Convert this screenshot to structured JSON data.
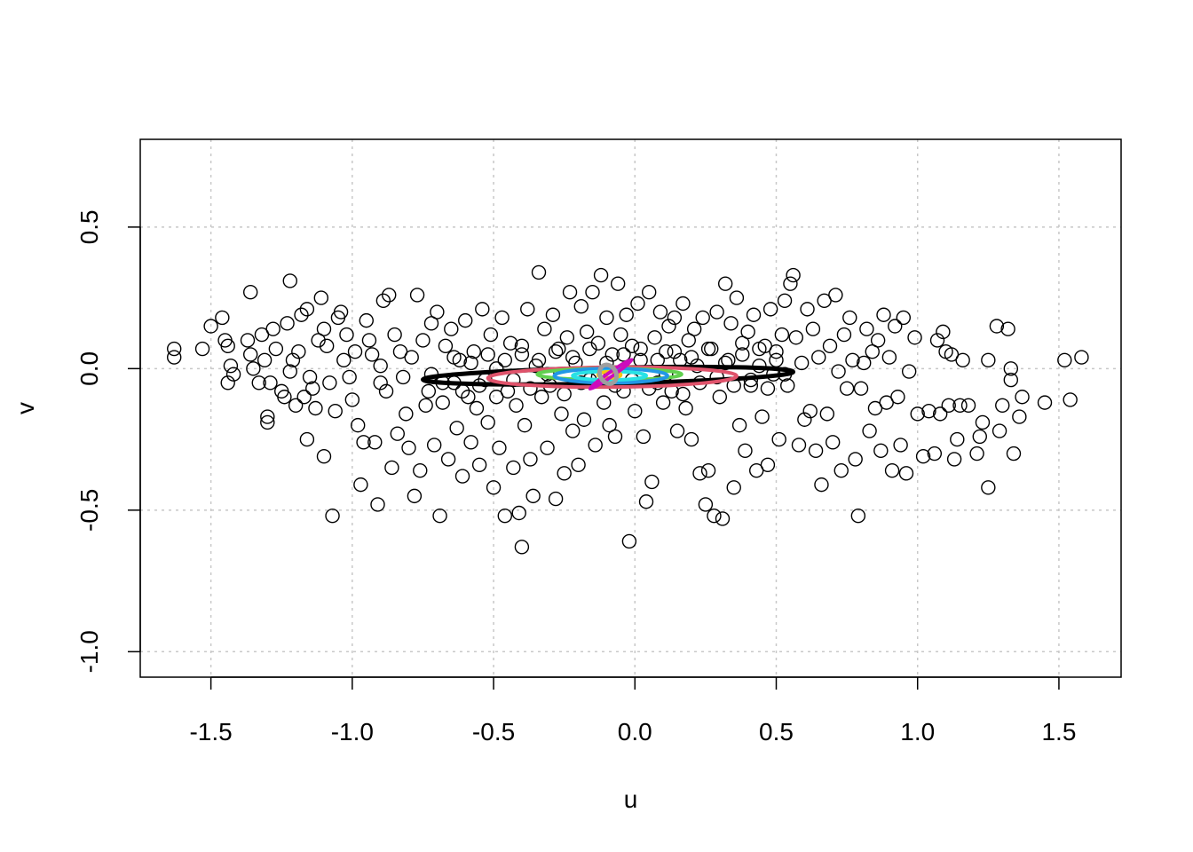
{
  "chart_data": {
    "type": "scatter",
    "title": "",
    "xlabel": "u",
    "ylabel": "v",
    "xlim": [
      -1.75,
      1.72
    ],
    "ylim": [
      -1.09,
      0.81
    ],
    "xticks": [
      -1.5,
      -1.0,
      -0.5,
      0.0,
      0.5,
      1.0,
      1.5
    ],
    "yticks": [
      -1.0,
      -0.5,
      0.0,
      0.5
    ],
    "xtick_labels": [
      "-1.5",
      "-1.0",
      "-0.5",
      "0.0",
      "0.5",
      "1.0",
      "1.5"
    ],
    "ytick_labels": [
      "-1.0",
      "-0.5",
      "0.0",
      "0.5"
    ],
    "grid": true,
    "legend": "none",
    "point_style": "open-circle",
    "points": [
      [
        -1.63,
        0.07
      ],
      [
        -1.63,
        0.04
      ],
      [
        -1.53,
        0.07
      ],
      [
        -1.5,
        0.15
      ],
      [
        -1.46,
        0.18
      ],
      [
        -1.45,
        0.1
      ],
      [
        -1.44,
        0.08
      ],
      [
        -1.44,
        -0.05
      ],
      [
        -1.43,
        0.01
      ],
      [
        -1.42,
        -0.02
      ],
      [
        -1.36,
        0.27
      ],
      [
        -1.37,
        0.1
      ],
      [
        -1.36,
        0.05
      ],
      [
        -1.35,
        0.0
      ],
      [
        -1.33,
        -0.05
      ],
      [
        -1.32,
        0.12
      ],
      [
        -1.31,
        0.03
      ],
      [
        -1.3,
        -0.17
      ],
      [
        -1.3,
        -0.19
      ],
      [
        -1.29,
        -0.05
      ],
      [
        -1.28,
        0.14
      ],
      [
        -1.27,
        0.07
      ],
      [
        -1.25,
        -0.08
      ],
      [
        -1.24,
        -0.1
      ],
      [
        -1.23,
        0.16
      ],
      [
        -1.22,
        0.31
      ],
      [
        -1.22,
        -0.01
      ],
      [
        -1.21,
        0.03
      ],
      [
        -1.2,
        -0.13
      ],
      [
        -1.19,
        0.06
      ],
      [
        -1.18,
        0.19
      ],
      [
        -1.17,
        -0.1
      ],
      [
        -1.16,
        -0.25
      ],
      [
        -1.16,
        0.21
      ],
      [
        -1.15,
        -0.03
      ],
      [
        -1.14,
        -0.07
      ],
      [
        -1.13,
        -0.14
      ],
      [
        -1.12,
        0.1
      ],
      [
        -1.11,
        0.25
      ],
      [
        -1.1,
        0.14
      ],
      [
        -1.1,
        -0.31
      ],
      [
        -1.09,
        0.08
      ],
      [
        -1.08,
        -0.05
      ],
      [
        -1.07,
        -0.52
      ],
      [
        -1.06,
        -0.15
      ],
      [
        -1.05,
        0.18
      ],
      [
        -1.04,
        0.2
      ],
      [
        -1.03,
        0.03
      ],
      [
        -1.02,
        0.12
      ],
      [
        -1.01,
        -0.03
      ],
      [
        -1.0,
        -0.11
      ],
      [
        -0.99,
        0.06
      ],
      [
        -0.98,
        -0.2
      ],
      [
        -0.97,
        -0.41
      ],
      [
        -0.96,
        -0.26
      ],
      [
        -0.95,
        0.17
      ],
      [
        -0.94,
        0.1
      ],
      [
        -0.93,
        0.05
      ],
      [
        -0.92,
        -0.26
      ],
      [
        -0.91,
        -0.48
      ],
      [
        -0.9,
        0.01
      ],
      [
        -0.9,
        -0.05
      ],
      [
        -0.89,
        0.24
      ],
      [
        -0.88,
        -0.08
      ],
      [
        -0.87,
        0.26
      ],
      [
        -0.86,
        -0.35
      ],
      [
        -0.85,
        0.12
      ],
      [
        -0.84,
        -0.23
      ],
      [
        -0.83,
        0.06
      ],
      [
        -0.82,
        -0.03
      ],
      [
        -0.81,
        -0.16
      ],
      [
        -0.8,
        -0.28
      ],
      [
        -0.79,
        0.04
      ],
      [
        -0.78,
        -0.45
      ],
      [
        -0.77,
        0.26
      ],
      [
        -0.76,
        -0.36
      ],
      [
        -0.75,
        0.1
      ],
      [
        -0.74,
        -0.13
      ],
      [
        -0.73,
        -0.08
      ],
      [
        -0.72,
        0.16
      ],
      [
        -0.71,
        -0.27
      ],
      [
        -0.7,
        0.2
      ],
      [
        -0.69,
        -0.52
      ],
      [
        -0.68,
        -0.12
      ],
      [
        -0.67,
        0.08
      ],
      [
        -0.66,
        -0.32
      ],
      [
        -0.65,
        0.14
      ],
      [
        -0.64,
        -0.05
      ],
      [
        -0.63,
        -0.21
      ],
      [
        -0.62,
        0.03
      ],
      [
        -0.61,
        -0.38
      ],
      [
        -0.6,
        0.17
      ],
      [
        -0.59,
        -0.1
      ],
      [
        -0.58,
        -0.26
      ],
      [
        -0.57,
        0.06
      ],
      [
        -0.56,
        -0.14
      ],
      [
        -0.55,
        -0.34
      ],
      [
        -0.54,
        0.21
      ],
      [
        -0.53,
        -0.04
      ],
      [
        -0.52,
        -0.19
      ],
      [
        -0.51,
        0.12
      ],
      [
        -0.5,
        -0.42
      ],
      [
        -0.49,
        0.0
      ],
      [
        -0.48,
        -0.28
      ],
      [
        -0.47,
        0.18
      ],
      [
        -0.46,
        -0.52
      ],
      [
        -0.45,
        -0.08
      ],
      [
        -0.44,
        0.09
      ],
      [
        -0.43,
        -0.35
      ],
      [
        -0.42,
        -0.13
      ],
      [
        -0.41,
        -0.51
      ],
      [
        -0.4,
        0.05
      ],
      [
        -0.4,
        -0.63
      ],
      [
        -0.39,
        -0.2
      ],
      [
        -0.38,
        0.21
      ],
      [
        -0.37,
        -0.32
      ],
      [
        -0.36,
        -0.45
      ],
      [
        -0.35,
        0.01
      ],
      [
        -0.34,
        0.34
      ],
      [
        -0.33,
        -0.1
      ],
      [
        -0.32,
        0.14
      ],
      [
        -0.31,
        -0.28
      ],
      [
        -0.3,
        -0.06
      ],
      [
        -0.29,
        0.19
      ],
      [
        -0.28,
        -0.46
      ],
      [
        -0.27,
        0.07
      ],
      [
        -0.26,
        -0.16
      ],
      [
        -0.25,
        -0.37
      ],
      [
        -0.24,
        0.11
      ],
      [
        -0.23,
        0.27
      ],
      [
        -0.22,
        -0.22
      ],
      [
        -0.21,
        0.02
      ],
      [
        -0.2,
        -0.34
      ],
      [
        -0.19,
        0.22
      ],
      [
        -0.18,
        -0.18
      ],
      [
        -0.17,
        0.13
      ],
      [
        -0.16,
        -0.04
      ],
      [
        -0.15,
        0.27
      ],
      [
        -0.14,
        -0.27
      ],
      [
        -0.13,
        0.09
      ],
      [
        -0.12,
        0.33
      ],
      [
        -0.11,
        -0.12
      ],
      [
        -0.1,
        0.18
      ],
      [
        -0.09,
        -0.2
      ],
      [
        -0.08,
        0.05
      ],
      [
        -0.07,
        -0.24
      ],
      [
        -0.06,
        0.3
      ],
      [
        -0.05,
        0.12
      ],
      [
        -0.04,
        -0.08
      ],
      [
        -0.03,
        0.19
      ],
      [
        -0.02,
        -0.61
      ],
      [
        -0.01,
        0.08
      ],
      [
        0.0,
        -0.15
      ],
      [
        0.01,
        0.23
      ],
      [
        0.02,
        0.03
      ],
      [
        0.03,
        -0.24
      ],
      [
        0.04,
        -0.47
      ],
      [
        0.05,
        0.27
      ],
      [
        0.06,
        -0.4
      ],
      [
        0.07,
        0.11
      ],
      [
        0.08,
        -0.05
      ],
      [
        0.09,
        0.2
      ],
      [
        0.1,
        -0.12
      ],
      [
        0.11,
        0.06
      ],
      [
        0.12,
        0.15
      ],
      [
        0.13,
        -0.08
      ],
      [
        0.14,
        0.18
      ],
      [
        0.15,
        -0.22
      ],
      [
        0.16,
        0.03
      ],
      [
        0.17,
        0.23
      ],
      [
        0.18,
        -0.14
      ],
      [
        0.19,
        0.1
      ],
      [
        0.2,
        -0.25
      ],
      [
        0.21,
        0.14
      ],
      [
        0.22,
        0.01
      ],
      [
        0.23,
        -0.37
      ],
      [
        0.24,
        0.18
      ],
      [
        0.25,
        -0.48
      ],
      [
        0.26,
        -0.36
      ],
      [
        0.27,
        0.07
      ],
      [
        0.28,
        -0.52
      ],
      [
        0.29,
        0.2
      ],
      [
        0.3,
        -0.1
      ],
      [
        0.31,
        -0.53
      ],
      [
        0.32,
        0.3
      ],
      [
        0.33,
        0.03
      ],
      [
        0.34,
        0.16
      ],
      [
        0.35,
        -0.42
      ],
      [
        0.36,
        0.25
      ],
      [
        0.37,
        -0.2
      ],
      [
        0.38,
        0.09
      ],
      [
        0.39,
        -0.29
      ],
      [
        0.4,
        0.13
      ],
      [
        0.41,
        -0.06
      ],
      [
        0.42,
        0.19
      ],
      [
        0.43,
        -0.36
      ],
      [
        0.44,
        0.01
      ],
      [
        0.45,
        -0.17
      ],
      [
        0.46,
        0.08
      ],
      [
        0.47,
        -0.34
      ],
      [
        0.48,
        0.21
      ],
      [
        0.49,
        -0.02
      ],
      [
        0.5,
        0.06
      ],
      [
        0.51,
        -0.25
      ],
      [
        0.52,
        0.12
      ],
      [
        0.53,
        0.24
      ],
      [
        0.54,
        -0.06
      ],
      [
        0.55,
        0.3
      ],
      [
        0.56,
        0.33
      ],
      [
        0.57,
        0.11
      ],
      [
        0.58,
        -0.27
      ],
      [
        0.59,
        0.02
      ],
      [
        0.6,
        -0.18
      ],
      [
        0.61,
        0.21
      ],
      [
        0.62,
        -0.15
      ],
      [
        0.63,
        0.14
      ],
      [
        0.64,
        -0.29
      ],
      [
        0.65,
        0.04
      ],
      [
        0.66,
        -0.41
      ],
      [
        0.67,
        0.24
      ],
      [
        0.68,
        -0.16
      ],
      [
        0.69,
        0.08
      ],
      [
        0.7,
        -0.26
      ],
      [
        0.71,
        0.26
      ],
      [
        0.72,
        -0.01
      ],
      [
        0.73,
        -0.36
      ],
      [
        0.74,
        0.12
      ],
      [
        0.75,
        -0.07
      ],
      [
        0.76,
        0.18
      ],
      [
        0.77,
        0.03
      ],
      [
        0.78,
        -0.32
      ],
      [
        0.79,
        -0.52
      ],
      [
        0.8,
        -0.07
      ],
      [
        0.81,
        0.02
      ],
      [
        0.82,
        0.14
      ],
      [
        0.83,
        -0.22
      ],
      [
        0.84,
        0.06
      ],
      [
        0.85,
        -0.14
      ],
      [
        0.86,
        0.1
      ],
      [
        0.87,
        -0.29
      ],
      [
        0.88,
        0.19
      ],
      [
        0.89,
        -0.12
      ],
      [
        0.9,
        0.04
      ],
      [
        0.91,
        -0.36
      ],
      [
        0.92,
        0.15
      ],
      [
        0.93,
        -0.1
      ],
      [
        0.94,
        -0.27
      ],
      [
        0.95,
        0.18
      ],
      [
        0.96,
        -0.37
      ],
      [
        0.97,
        -0.01
      ],
      [
        0.99,
        0.11
      ],
      [
        1.0,
        -0.16
      ],
      [
        1.02,
        -0.31
      ],
      [
        1.04,
        -0.15
      ],
      [
        1.06,
        -0.3
      ],
      [
        1.07,
        0.1
      ],
      [
        1.08,
        -0.16
      ],
      [
        1.09,
        0.13
      ],
      [
        1.1,
        0.06
      ],
      [
        1.11,
        -0.13
      ],
      [
        1.12,
        0.05
      ],
      [
        1.13,
        -0.32
      ],
      [
        1.14,
        -0.25
      ],
      [
        1.15,
        -0.13
      ],
      [
        1.16,
        0.03
      ],
      [
        1.18,
        -0.13
      ],
      [
        1.21,
        -0.3
      ],
      [
        1.22,
        -0.24
      ],
      [
        1.23,
        -0.19
      ],
      [
        1.25,
        0.03
      ],
      [
        1.25,
        -0.42
      ],
      [
        1.28,
        0.15
      ],
      [
        1.29,
        -0.22
      ],
      [
        1.3,
        -0.13
      ],
      [
        1.32,
        0.14
      ],
      [
        1.33,
        0.0
      ],
      [
        1.33,
        -0.04
      ],
      [
        1.34,
        -0.3
      ],
      [
        1.36,
        -0.17
      ],
      [
        1.37,
        -0.1
      ],
      [
        1.45,
        -0.12
      ],
      [
        1.52,
        0.03
      ],
      [
        1.54,
        -0.11
      ],
      [
        1.58,
        0.04
      ],
      [
        -0.72,
        -0.02
      ],
      [
        -0.68,
        -0.05
      ],
      [
        -0.64,
        0.04
      ],
      [
        -0.61,
        -0.08
      ],
      [
        -0.58,
        0.02
      ],
      [
        -0.55,
        -0.06
      ],
      [
        -0.52,
        0.05
      ],
      [
        -0.49,
        -0.1
      ],
      [
        -0.46,
        0.03
      ],
      [
        -0.43,
        -0.04
      ],
      [
        -0.4,
        0.08
      ],
      [
        -0.37,
        -0.07
      ],
      [
        -0.34,
        0.03
      ],
      [
        -0.31,
        -0.02
      ],
      [
        -0.28,
        0.06
      ],
      [
        -0.25,
        -0.09
      ],
      [
        -0.22,
        0.04
      ],
      [
        -0.19,
        -0.05
      ],
      [
        -0.16,
        0.07
      ],
      [
        -0.13,
        -0.03
      ],
      [
        -0.1,
        0.02
      ],
      [
        -0.07,
        -0.06
      ],
      [
        -0.04,
        0.05
      ],
      [
        -0.01,
        -0.04
      ],
      [
        0.02,
        0.07
      ],
      [
        0.05,
        -0.07
      ],
      [
        0.08,
        0.03
      ],
      [
        0.11,
        -0.02
      ],
      [
        0.14,
        0.06
      ],
      [
        0.17,
        -0.09
      ],
      [
        0.2,
        0.04
      ],
      [
        0.23,
        -0.05
      ],
      [
        0.26,
        0.07
      ],
      [
        0.29,
        -0.03
      ],
      [
        0.32,
        0.02
      ],
      [
        0.35,
        -0.06
      ],
      [
        0.38,
        0.05
      ],
      [
        0.41,
        -0.04
      ],
      [
        0.44,
        0.07
      ],
      [
        0.47,
        -0.07
      ],
      [
        0.5,
        0.03
      ],
      [
        0.53,
        -0.02
      ]
    ],
    "ellipses": [
      {
        "color": "#000000",
        "cx": -0.095,
        "cy": -0.025,
        "rx": 0.655,
        "ry": 0.028,
        "angle_deg": -1.2,
        "stroke_width": 5
      },
      {
        "color": "#DF536B",
        "cx": -0.08,
        "cy": -0.03,
        "rx": 0.44,
        "ry": 0.035,
        "angle_deg": -0.5,
        "stroke_width": 4
      },
      {
        "color": "#61D04F",
        "cx": -0.09,
        "cy": -0.02,
        "rx": 0.255,
        "ry": 0.02,
        "angle_deg": 0,
        "stroke_width": 4
      },
      {
        "color": "#2297E6",
        "cx": -0.085,
        "cy": -0.025,
        "rx": 0.2,
        "ry": 0.025,
        "angle_deg": 0,
        "stroke_width": 4
      },
      {
        "color": "#28E2E5",
        "cx": -0.09,
        "cy": -0.025,
        "rx": 0.13,
        "ry": 0.015,
        "angle_deg": 0,
        "stroke_width": 4
      },
      {
        "color": "#F5C710",
        "cx": -0.09,
        "cy": -0.022,
        "rx": 0.04,
        "ry": 0.011,
        "angle_deg": 0,
        "stroke_width": 4
      },
      {
        "color": "#CD0BBC",
        "cx": -0.085,
        "cy": -0.02,
        "rx": 0.09,
        "ry": 0.005,
        "angle_deg": -35,
        "stroke_width": 4
      },
      {
        "color": "#9E9E9E",
        "cx": -0.095,
        "cy": -0.02,
        "rx": 0.035,
        "ry": 0.028,
        "angle_deg": 60,
        "stroke_width": 5
      }
    ]
  }
}
